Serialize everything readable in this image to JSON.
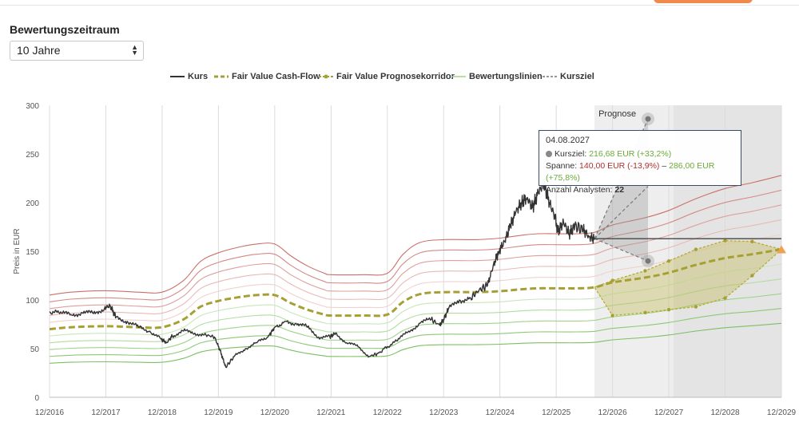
{
  "controls": {
    "period_label": "Bewertungszeitraum",
    "period_value": "10 Jahre"
  },
  "legend": [
    {
      "name": "Kurs",
      "color": "#333333",
      "style": "solid"
    },
    {
      "name": "Fair Value Cash-Flow",
      "color": "#a6a034",
      "style": "dashed-bold"
    },
    {
      "name": "Fair Value Prognosekorridor",
      "color": "#a6a034",
      "style": "dashed-dots"
    },
    {
      "name": "Bewertungslinien",
      "color": "#9fd38a",
      "style": "thin"
    },
    {
      "name": "Kursziel",
      "color": "#777777",
      "style": "dashed"
    }
  ],
  "tooltip": {
    "date": "04.08.2027",
    "kursziel_label": "Kursziel:",
    "kursziel_value": "216,68 EUR (+33,2%)",
    "spanne_label": "Spanne:",
    "spanne_low": "140,00 EUR (-13,9%)",
    "spanne_sep": "–",
    "spanne_high": "286,00 EUR (+75,8%)",
    "analysts_label": "Anzahl Analysten:",
    "analysts_value": "22"
  },
  "chart_data": {
    "type": "line",
    "ylabel": "Preis in EUR",
    "ylim": [
      0,
      300
    ],
    "yticks": [
      0,
      50,
      100,
      150,
      200,
      250,
      300
    ],
    "xlim": [
      2016.92,
      2029.92
    ],
    "xticks": [
      {
        "x": 2016.92,
        "label": "12/2016"
      },
      {
        "x": 2017.92,
        "label": "12/2017"
      },
      {
        "x": 2018.92,
        "label": "12/2018"
      },
      {
        "x": 2019.92,
        "label": "12/2019"
      },
      {
        "x": 2020.92,
        "label": "12/2020"
      },
      {
        "x": 2021.92,
        "label": "12/2021"
      },
      {
        "x": 2022.92,
        "label": "12/2022"
      },
      {
        "x": 2023.92,
        "label": "12/2023"
      },
      {
        "x": 2024.92,
        "label": "12/2024"
      },
      {
        "x": 2025.92,
        "label": "12/2025"
      },
      {
        "x": 2026.92,
        "label": "12/2026"
      },
      {
        "x": 2027.92,
        "label": "12/2027"
      },
      {
        "x": 2028.92,
        "label": "12/2028"
      },
      {
        "x": 2029.92,
        "label": "12/2029"
      }
    ],
    "forecast_label": "Prognose",
    "forecast_start": 2026.6,
    "forecast_dark_start": 2028.0,
    "kurs": {
      "name": "Kurs",
      "points": [
        [
          2016.92,
          88
        ],
        [
          2017.1,
          86
        ],
        [
          2017.3,
          85
        ],
        [
          2017.5,
          87
        ],
        [
          2017.7,
          86
        ],
        [
          2017.9,
          92
        ],
        [
          2018.0,
          94
        ],
        [
          2018.1,
          82
        ],
        [
          2018.3,
          78
        ],
        [
          2018.5,
          72
        ],
        [
          2018.7,
          68
        ],
        [
          2018.9,
          60
        ],
        [
          2019.0,
          56
        ],
        [
          2019.1,
          63
        ],
        [
          2019.3,
          68
        ],
        [
          2019.5,
          66
        ],
        [
          2019.7,
          64
        ],
        [
          2019.85,
          62
        ],
        [
          2019.95,
          48
        ],
        [
          2020.05,
          31
        ],
        [
          2020.2,
          42
        ],
        [
          2020.4,
          50
        ],
        [
          2020.6,
          56
        ],
        [
          2020.8,
          62
        ],
        [
          2020.92,
          72
        ],
        [
          2021.1,
          78
        ],
        [
          2021.3,
          76
        ],
        [
          2021.5,
          72
        ],
        [
          2021.7,
          62
        ],
        [
          2021.9,
          62
        ],
        [
          2022.0,
          66
        ],
        [
          2022.2,
          56
        ],
        [
          2022.4,
          52
        ],
        [
          2022.6,
          42
        ],
        [
          2022.75,
          45
        ],
        [
          2022.92,
          52
        ],
        [
          2023.1,
          58
        ],
        [
          2023.3,
          68
        ],
        [
          2023.5,
          76
        ],
        [
          2023.7,
          80
        ],
        [
          2023.85,
          74
        ],
        [
          2023.92,
          80
        ],
        [
          2024.0,
          90
        ],
        [
          2024.2,
          100
        ],
        [
          2024.4,
          102
        ],
        [
          2024.55,
          110
        ],
        [
          2024.7,
          115
        ],
        [
          2024.8,
          135
        ],
        [
          2024.9,
          150
        ],
        [
          2025.0,
          160
        ],
        [
          2025.1,
          175
        ],
        [
          2025.2,
          190
        ],
        [
          2025.3,
          200
        ],
        [
          2025.4,
          205
        ],
        [
          2025.5,
          195
        ],
        [
          2025.6,
          210
        ],
        [
          2025.7,
          220
        ],
        [
          2025.8,
          200
        ],
        [
          2025.9,
          185
        ],
        [
          2025.95,
          170
        ],
        [
          2026.05,
          180
        ],
        [
          2026.15,
          168
        ],
        [
          2026.25,
          176
        ],
        [
          2026.4,
          172
        ],
        [
          2026.5,
          165
        ],
        [
          2026.6,
          163
        ]
      ]
    },
    "current_price_line": {
      "y": 163,
      "x_from": 2026.6,
      "x_to": 2029.92
    },
    "fair_value_cash_flow": {
      "name": "Fair Value Cash-Flow",
      "points": [
        [
          2016.92,
          70
        ],
        [
          2017.3,
          72
        ],
        [
          2017.92,
          73
        ],
        [
          2018.5,
          72
        ],
        [
          2018.92,
          72
        ],
        [
          2019.3,
          80
        ],
        [
          2019.6,
          93
        ],
        [
          2019.92,
          99
        ],
        [
          2020.3,
          103
        ],
        [
          2020.6,
          105
        ],
        [
          2020.92,
          105
        ],
        [
          2021.2,
          97
        ],
        [
          2021.5,
          90
        ],
        [
          2021.8,
          85
        ],
        [
          2021.92,
          84
        ],
        [
          2022.5,
          84
        ],
        [
          2022.92,
          85
        ],
        [
          2023.2,
          98
        ],
        [
          2023.5,
          106
        ],
        [
          2023.92,
          108
        ],
        [
          2024.5,
          108
        ],
        [
          2024.92,
          109
        ],
        [
          2025.3,
          111
        ],
        [
          2025.6,
          112
        ],
        [
          2025.92,
          112
        ],
        [
          2026.3,
          112
        ],
        [
          2026.6,
          113
        ],
        [
          2026.92,
          118
        ],
        [
          2027.5,
          123
        ],
        [
          2027.92,
          128
        ],
        [
          2028.4,
          136
        ],
        [
          2028.92,
          143
        ],
        [
          2029.4,
          147
        ],
        [
          2029.92,
          152
        ]
      ]
    },
    "corridor": {
      "name": "Fair Value Prognosekorridor",
      "upper": [
        [
          2026.6,
          113
        ],
        [
          2026.92,
          120
        ],
        [
          2027.5,
          130
        ],
        [
          2027.92,
          140
        ],
        [
          2028.4,
          152
        ],
        [
          2028.92,
          161
        ],
        [
          2029.4,
          160
        ],
        [
          2029.92,
          152
        ]
      ],
      "lower": [
        [
          2026.6,
          113
        ],
        [
          2026.92,
          84
        ],
        [
          2027.5,
          87
        ],
        [
          2027.92,
          90
        ],
        [
          2028.4,
          93
        ],
        [
          2028.92,
          102
        ],
        [
          2029.4,
          125
        ],
        [
          2029.92,
          152
        ]
      ]
    },
    "kursziel": {
      "name": "Kursziel",
      "origin": [
        2026.6,
        163
      ],
      "high": [
        2027.55,
        286
      ],
      "mid": [
        2027.55,
        216.68
      ],
      "low": [
        2027.55,
        140
      ]
    }
  }
}
